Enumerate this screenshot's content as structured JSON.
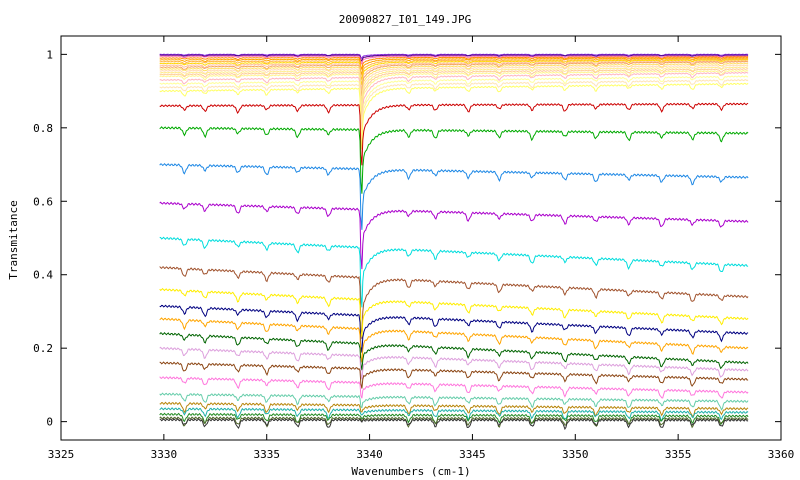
{
  "chart_data": {
    "type": "line",
    "title": "20090827_I01_149.JPG",
    "xlabel": "Wavenumbers (cm-1)",
    "ylabel": "Transmitance",
    "xlim": [
      3325,
      3360
    ],
    "ylim": [
      -0.05,
      1.05
    ],
    "x_ticks": [
      3325,
      3330,
      3335,
      3340,
      3345,
      3350,
      3355,
      3360
    ],
    "x_tick_labels": [
      "3325",
      "3330",
      "3335",
      "3340",
      "3345",
      "3350",
      "3355",
      "3360"
    ],
    "y_ticks": [
      0,
      0.2,
      0.4,
      0.6,
      0.8,
      1
    ],
    "y_tick_labels": [
      "0",
      "0.2",
      "0.4",
      "0.6",
      "0.8",
      "1"
    ],
    "grid": false,
    "legend": "none",
    "x_range": [
      3329.8,
      3358.4
    ],
    "main_dip_x": 3339.6,
    "minor_dip_x": [
      3331.0,
      3332.0,
      3333.6,
      3335.0,
      3336.5,
      3338.0,
      3341.9,
      3343.2,
      3344.8,
      3346.3,
      3347.9,
      3349.5,
      3351.0,
      3352.6,
      3354.2,
      3355.7,
      3357.1
    ],
    "series": [
      {
        "baseline": 1.0,
        "main_dip": 0.01,
        "end_level": 1.0,
        "color": "#8a2be2"
      },
      {
        "baseline": 0.998,
        "main_dip": 0.015,
        "end_level": 0.998,
        "color": "#4b0082"
      },
      {
        "baseline": 0.995,
        "main_dip": 0.02,
        "end_level": 0.995,
        "color": "#ff69b4"
      },
      {
        "baseline": 0.99,
        "main_dip": 0.03,
        "end_level": 0.993,
        "color": "#ff8c00"
      },
      {
        "baseline": 0.985,
        "main_dip": 0.04,
        "end_level": 0.99,
        "color": "#ffa500"
      },
      {
        "baseline": 0.98,
        "main_dip": 0.05,
        "end_level": 0.987,
        "color": "#ffb347"
      },
      {
        "baseline": 0.975,
        "main_dip": 0.06,
        "end_level": 0.985,
        "color": "#ffd700"
      },
      {
        "baseline": 0.97,
        "main_dip": 0.07,
        "end_level": 0.982,
        "color": "#ffc0a0"
      },
      {
        "baseline": 0.965,
        "main_dip": 0.08,
        "end_level": 0.98,
        "color": "#f4a460"
      },
      {
        "baseline": 0.96,
        "main_dip": 0.09,
        "end_level": 0.975,
        "color": "#ffe066"
      },
      {
        "baseline": 0.955,
        "main_dip": 0.1,
        "end_level": 0.97,
        "color": "#ffdab9"
      },
      {
        "baseline": 0.95,
        "main_dip": 0.11,
        "end_level": 0.965,
        "color": "#ffec8b"
      },
      {
        "baseline": 0.945,
        "main_dip": 0.12,
        "end_level": 0.96,
        "color": "#ffcc99"
      },
      {
        "baseline": 0.94,
        "main_dip": 0.13,
        "end_level": 0.955,
        "color": "#fff68f"
      },
      {
        "baseline": 0.93,
        "main_dip": 0.14,
        "end_level": 0.95,
        "color": "#ffb6c1"
      },
      {
        "baseline": 0.92,
        "main_dip": 0.15,
        "end_level": 0.94,
        "color": "#ffff99"
      },
      {
        "baseline": 0.91,
        "main_dip": 0.15,
        "end_level": 0.93,
        "color": "#ffe4b5"
      },
      {
        "baseline": 0.9,
        "main_dip": 0.16,
        "end_level": 0.92,
        "color": "#ffff66"
      },
      {
        "baseline": 0.86,
        "main_dip": 0.16,
        "end_level": 0.865,
        "color": "#cc0000"
      },
      {
        "baseline": 0.8,
        "main_dip": 0.17,
        "end_level": 0.785,
        "color": "#00aa00"
      },
      {
        "baseline": 0.7,
        "main_dip": 0.16,
        "end_level": 0.665,
        "color": "#1e88e5"
      },
      {
        "baseline": 0.595,
        "main_dip": 0.155,
        "end_level": 0.545,
        "color": "#aa00cc"
      },
      {
        "baseline": 0.5,
        "main_dip": 0.155,
        "end_level": 0.425,
        "color": "#00dddd"
      },
      {
        "baseline": 0.42,
        "main_dip": 0.16,
        "end_level": 0.34,
        "color": "#a0522d"
      },
      {
        "baseline": 0.36,
        "main_dip": 0.1,
        "end_level": 0.28,
        "color": "#ffee00"
      },
      {
        "baseline": 0.315,
        "main_dip": 0.1,
        "end_level": 0.24,
        "color": "#000080"
      },
      {
        "baseline": 0.28,
        "main_dip": 0.09,
        "end_level": 0.2,
        "color": "#ffa500"
      },
      {
        "baseline": 0.24,
        "main_dip": 0.07,
        "end_level": 0.16,
        "color": "#006400"
      },
      {
        "baseline": 0.2,
        "main_dip": 0.06,
        "end_level": 0.14,
        "color": "#dda0dd"
      },
      {
        "baseline": 0.16,
        "main_dip": 0.05,
        "end_level": 0.115,
        "color": "#8b4513"
      },
      {
        "baseline": 0.12,
        "main_dip": 0.04,
        "end_level": 0.08,
        "color": "#ff77dd"
      },
      {
        "baseline": 0.075,
        "main_dip": 0.03,
        "end_level": 0.055,
        "color": "#66cdaa"
      },
      {
        "baseline": 0.05,
        "main_dip": 0.02,
        "end_level": 0.035,
        "color": "#b8860b"
      },
      {
        "baseline": 0.035,
        "main_dip": 0.015,
        "end_level": 0.025,
        "color": "#20b2aa"
      },
      {
        "baseline": 0.02,
        "main_dip": 0.01,
        "end_level": 0.015,
        "color": "#228b22"
      },
      {
        "baseline": 0.01,
        "main_dip": 0.005,
        "end_level": 0.008,
        "color": "#556b2f"
      },
      {
        "baseline": 0.005,
        "main_dip": 0.003,
        "end_level": 0.004,
        "color": "#333333"
      }
    ]
  }
}
